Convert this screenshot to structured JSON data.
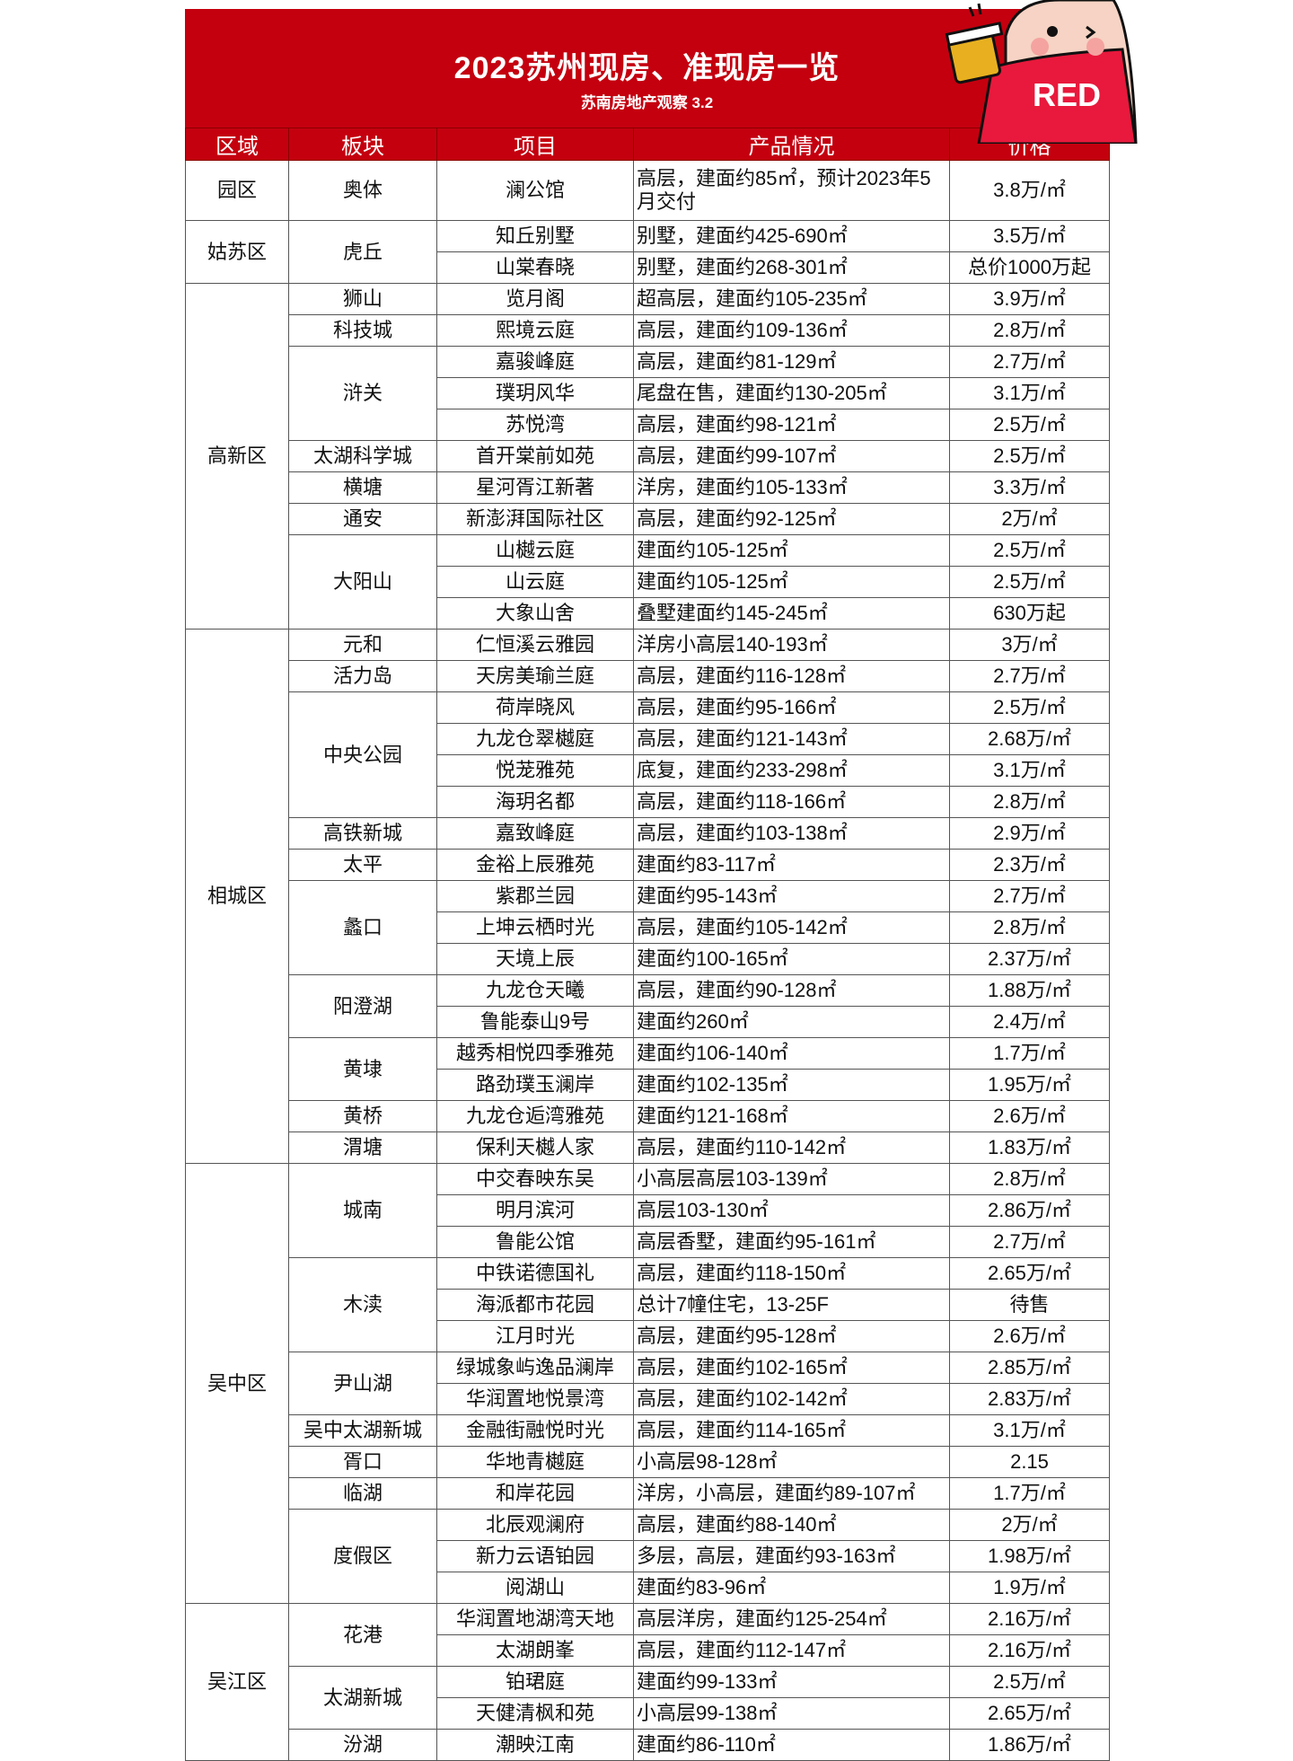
{
  "header": {
    "title": "2023苏州现房、准现房一览",
    "subtitle": "苏南房地产观察 3.2"
  },
  "mascot": {
    "logo_text": "RED",
    "shirt_color": "#e8193c"
  },
  "colors": {
    "banner": "#c4000f"
  },
  "columns": [
    "区域",
    "板块",
    "项目",
    "产品情况",
    "价格"
  ],
  "districts": [
    {
      "name": "园区",
      "blocks": [
        {
          "name": "奥体",
          "projects": [
            [
              "澜公馆",
              "高层，建面约85㎡，预计2023年5月交付",
              "3.8万/㎡"
            ]
          ]
        }
      ]
    },
    {
      "name": "姑苏区",
      "blocks": [
        {
          "name": "虎丘",
          "projects": [
            [
              "知丘别墅",
              "别墅，建面约425-690㎡",
              "3.5万/㎡"
            ],
            [
              "山棠春晓",
              "别墅，建面约268-301㎡",
              "总价1000万起"
            ]
          ]
        }
      ]
    },
    {
      "name": "高新区",
      "blocks": [
        {
          "name": "狮山",
          "projects": [
            [
              "览月阁",
              "超高层，建面约105-235㎡",
              "3.9万/㎡"
            ]
          ]
        },
        {
          "name": "科技城",
          "projects": [
            [
              "熙境云庭",
              "高层，建面约109-136㎡",
              "2.8万/㎡"
            ]
          ]
        },
        {
          "name": "浒关",
          "projects": [
            [
              "嘉骏峰庭",
              "高层，建面约81-129㎡",
              "2.7万/㎡"
            ],
            [
              "璞玥风华",
              "尾盘在售，建面约130-205㎡",
              "3.1万/㎡"
            ],
            [
              "苏悦湾",
              "高层，建面约98-121㎡",
              "2.5万/㎡"
            ]
          ]
        },
        {
          "name": "太湖科学城",
          "projects": [
            [
              "首开棠前如苑",
              "高层，建面约99-107㎡",
              "2.5万/㎡"
            ]
          ]
        },
        {
          "name": "横塘",
          "projects": [
            [
              "星河胥江新著",
              "洋房，建面约105-133㎡",
              "3.3万/㎡"
            ]
          ]
        },
        {
          "name": "通安",
          "projects": [
            [
              "新澎湃国际社区",
              "高层，建面约92-125㎡",
              "2万/㎡"
            ]
          ]
        },
        {
          "name": "大阳山",
          "projects": [
            [
              "山樾云庭",
              "建面约105-125㎡",
              "2.5万/㎡"
            ],
            [
              "山云庭",
              "建面约105-125㎡",
              "2.5万/㎡"
            ],
            [
              "大象山舍",
              "叠墅建面约145-245㎡",
              "630万起"
            ]
          ]
        }
      ]
    },
    {
      "name": "相城区",
      "blocks": [
        {
          "name": "元和",
          "projects": [
            [
              "仁恒溪云雅园",
              "洋房小高层140-193㎡",
              "3万/㎡"
            ]
          ]
        },
        {
          "name": "活力岛",
          "projects": [
            [
              "天房美瑜兰庭",
              "高层，建面约116-128㎡",
              "2.7万/㎡"
            ]
          ]
        },
        {
          "name": "中央公园",
          "projects": [
            [
              "荷岸晓风",
              "高层，建面约95-166㎡",
              "2.5万/㎡"
            ],
            [
              "九龙仓翠樾庭",
              "高层，建面约121-143㎡",
              "2.68万/㎡"
            ],
            [
              "悦茏雅苑",
              "底复，建面约233-298㎡",
              "3.1万/㎡"
            ],
            [
              "海玥名都",
              "高层，建面约118-166㎡",
              "2.8万/㎡"
            ]
          ]
        },
        {
          "name": "高铁新城",
          "projects": [
            [
              "嘉致峰庭",
              "高层，建面约103-138㎡",
              "2.9万/㎡"
            ]
          ]
        },
        {
          "name": "太平",
          "projects": [
            [
              "金裕上辰雅苑",
              "建面约83-117㎡",
              "2.3万/㎡"
            ]
          ]
        },
        {
          "name": "蠡口",
          "projects": [
            [
              "紫郡兰园",
              "建面约95-143㎡",
              "2.7万/㎡"
            ],
            [
              "上坤云栖时光",
              "高层，建面约105-142㎡",
              "2.8万/㎡"
            ],
            [
              "天境上辰",
              "建面约100-165㎡",
              "2.37万/㎡"
            ]
          ]
        },
        {
          "name": "阳澄湖",
          "projects": [
            [
              "九龙仓天曦",
              "高层，建面约90-128㎡",
              "1.88万/㎡"
            ],
            [
              "鲁能泰山9号",
              "建面约260㎡",
              "2.4万/㎡"
            ]
          ]
        },
        {
          "name": "黄埭",
          "projects": [
            [
              "越秀相悦四季雅苑",
              "建面约106-140㎡",
              "1.7万/㎡"
            ],
            [
              "路劲璞玉澜岸",
              "建面约102-135㎡",
              "1.95万/㎡"
            ]
          ]
        },
        {
          "name": "黄桥",
          "projects": [
            [
              "九龙仓逅湾雅苑",
              "建面约121-168㎡",
              "2.6万/㎡"
            ]
          ]
        },
        {
          "name": "渭塘",
          "projects": [
            [
              "保利天樾人家",
              "高层，建面约110-142㎡",
              "1.83万/㎡"
            ]
          ]
        }
      ]
    },
    {
      "name": "吴中区",
      "blocks": [
        {
          "name": "城南",
          "projects": [
            [
              "中交春映东吴",
              "小高层高层103-139㎡",
              "2.8万/㎡"
            ],
            [
              "明月滨河",
              "高层103-130㎡",
              "2.86万/㎡"
            ],
            [
              "鲁能公馆",
              "高层香墅，建面约95-161㎡",
              "2.7万/㎡"
            ]
          ]
        },
        {
          "name": "木渎",
          "projects": [
            [
              "中铁诺德国礼",
              "高层，建面约118-150㎡",
              "2.65万/㎡"
            ],
            [
              "海派都市花园",
              "总计7幢住宅，13-25F",
              "待售"
            ],
            [
              "江月时光",
              "高层，建面约95-128㎡",
              "2.6万/㎡"
            ]
          ]
        },
        {
          "name": "尹山湖",
          "projects": [
            [
              "绿城象屿逸品澜岸",
              "高层，建面约102-165㎡",
              "2.85万/㎡"
            ],
            [
              "华润置地悦景湾",
              "高层，建面约102-142㎡",
              "2.83万/㎡"
            ]
          ]
        },
        {
          "name": "吴中太湖新城",
          "projects": [
            [
              "金融街融悦时光",
              "高层，建面约114-165㎡",
              "3.1万/㎡"
            ]
          ]
        },
        {
          "name": "胥口",
          "projects": [
            [
              "华地青樾庭",
              "小高层98-128㎡",
              "2.15"
            ]
          ]
        },
        {
          "name": "临湖",
          "projects": [
            [
              "和岸花园",
              "洋房，小高层，建面约89-107㎡",
              "1.7万/㎡"
            ]
          ]
        },
        {
          "name": "度假区",
          "projects": [
            [
              "北辰观澜府",
              "高层，建面约88-140㎡",
              "2万/㎡"
            ],
            [
              "新力云语铂园",
              "多层，高层，建面约93-163㎡",
              "1.98万/㎡"
            ],
            [
              "阅湖山",
              "建面约83-96㎡",
              "1.9万/㎡"
            ]
          ]
        }
      ]
    },
    {
      "name": "吴江区",
      "blocks": [
        {
          "name": "花港",
          "projects": [
            [
              "华润置地湖湾天地",
              "高层洋房，建面约125-254㎡",
              "2.16万/㎡"
            ],
            [
              "太湖朗峯",
              "高层，建面约112-147㎡",
              "2.16万/㎡"
            ]
          ]
        },
        {
          "name": "太湖新城",
          "projects": [
            [
              "铂珺庭",
              "建面约99-133㎡",
              "2.5万/㎡"
            ],
            [
              "天健清枫和苑",
              "小高层99-138㎡",
              "2.65万/㎡"
            ]
          ]
        },
        {
          "name": "汾湖",
          "projects": [
            [
              "潮映江南",
              "建面约86-110㎡",
              "1.86万/㎡"
            ]
          ]
        }
      ]
    }
  ]
}
